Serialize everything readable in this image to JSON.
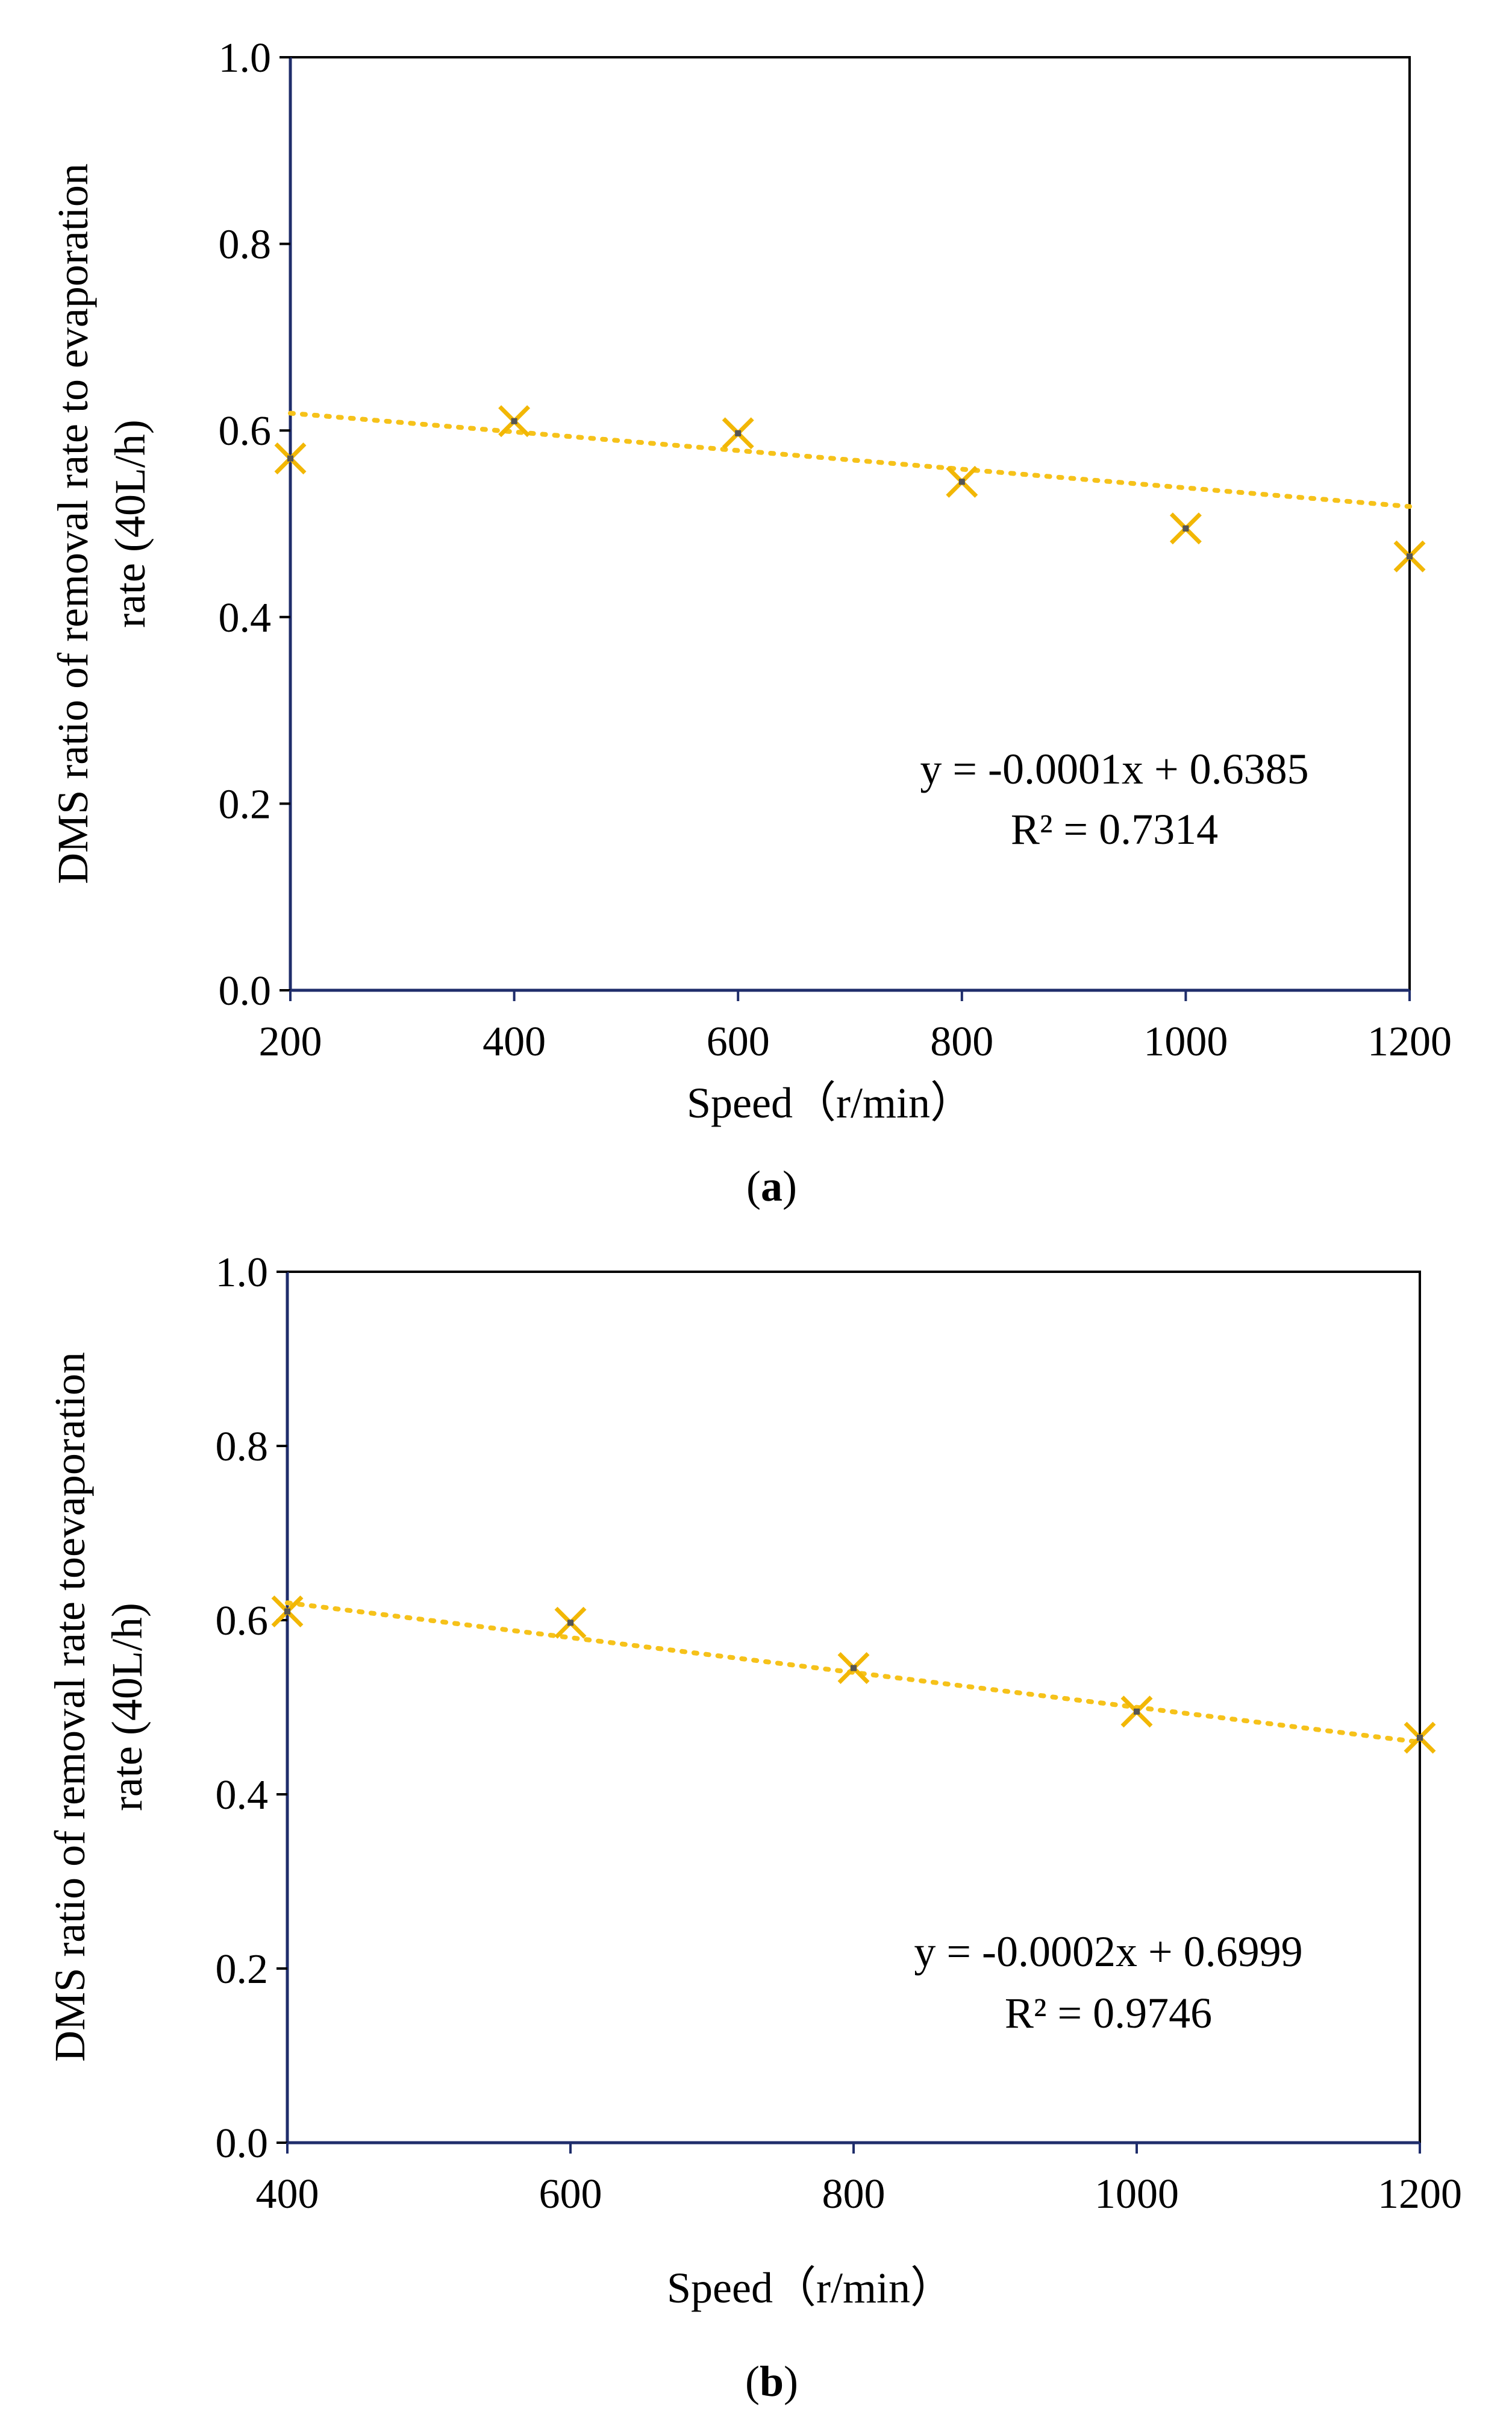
{
  "colors": {
    "marker": "#f2b705",
    "trendline": "#f6c21a",
    "axis": "#1f2d6b",
    "frame": "#000000",
    "center_mark": "#555555"
  },
  "chart_data": [
    {
      "type": "scatter",
      "panel": "a",
      "panel_label_letter": "a",
      "xlabel": "Speed（r/min）",
      "ylabel_line1": "DMS ratio of removal rate to evaporation",
      "ylabel_line2": "rate (40L/h)",
      "xlim": [
        200,
        1200
      ],
      "ylim": [
        0.0,
        1.0
      ],
      "xticks": [
        "200",
        "400",
        "600",
        "800",
        "1000",
        "1200"
      ],
      "yticks": [
        "0.0",
        "0.2",
        "0.4",
        "0.6",
        "0.8",
        "1.0"
      ],
      "x": [
        200,
        400,
        600,
        800,
        1000,
        1200
      ],
      "y": [
        0.57,
        0.61,
        0.597,
        0.545,
        0.495,
        0.465
      ],
      "trendline": {
        "slope": -0.0001,
        "intercept": 0.6385,
        "style": "dotted"
      },
      "equation_line1": "y = -0.0001x + 0.6385",
      "equation_line2": "R² = 0.7314"
    },
    {
      "type": "scatter",
      "panel": "b",
      "panel_label_letter": "b",
      "xlabel": "Speed（r/min）",
      "ylabel_line1": "DMS ratio of removal rate toevaporation",
      "ylabel_line2": "rate (40L/h)",
      "xlim": [
        400,
        1200
      ],
      "ylim": [
        0.0,
        1.0
      ],
      "xticks": [
        "400",
        "600",
        "800",
        "1000",
        "1200"
      ],
      "yticks": [
        "0.0",
        "0.2",
        "0.4",
        "0.6",
        "0.8",
        "1.0"
      ],
      "x": [
        400,
        600,
        800,
        1000,
        1200
      ],
      "y": [
        0.61,
        0.597,
        0.545,
        0.495,
        0.465
      ],
      "trendline": {
        "slope": -0.0002,
        "intercept": 0.6999,
        "style": "dotted"
      },
      "equation_line1": "y = -0.0002x + 0.6999",
      "equation_line2": "R² = 0.9746"
    }
  ]
}
